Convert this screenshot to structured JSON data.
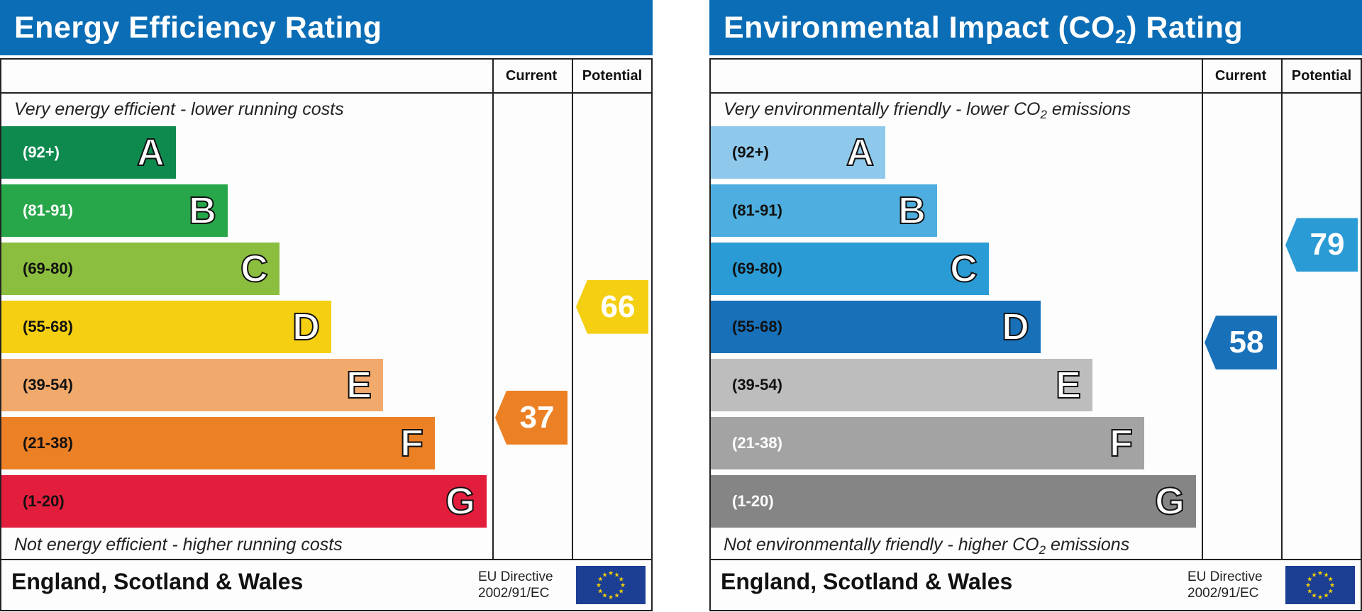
{
  "panels": [
    {
      "title_main": "Energy Efficiency Rating",
      "title_sub": "",
      "title_suffix": "",
      "col_current": "Current",
      "col_potential": "Potential",
      "caption_top": "Very energy efficient - lower running costs",
      "caption_top_sub": "",
      "caption_top_suffix": "",
      "caption_bottom": "Not energy efficient - higher running costs",
      "caption_bottom_sub": "",
      "caption_bottom_suffix": "",
      "footer": "England, Scotland & Wales",
      "eu_line1": "EU Directive",
      "eu_line2": "2002/91/EC"
    },
    {
      "title_main": "Environmental Impact (CO",
      "title_sub": "2",
      "title_suffix": ") Rating",
      "col_current": "Current",
      "col_potential": "Potential",
      "caption_top": "Very environmentally friendly - lower CO",
      "caption_top_sub": "2",
      "caption_top_suffix": " emissions",
      "caption_bottom": "Not environmentally friendly - higher CO",
      "caption_bottom_sub": "2",
      "caption_bottom_suffix": " emissions",
      "footer": "England, Scotland & Wales",
      "eu_line1": "EU Directive",
      "eu_line2": "2002/91/EC"
    }
  ],
  "chart_data": [
    {
      "type": "bar",
      "title": "Energy Efficiency Rating",
      "bands": [
        {
          "letter": "A",
          "range": "(92+)",
          "color": "#0f8a4f",
          "text_color": "#ffffff"
        },
        {
          "letter": "B",
          "range": "(81-91)",
          "color": "#27a64a",
          "text_color": "#ffffff"
        },
        {
          "letter": "C",
          "range": "(69-80)",
          "color": "#8bbd3e",
          "text_color": "#111111"
        },
        {
          "letter": "D",
          "range": "(55-68)",
          "color": "#f4cf12",
          "text_color": "#111111"
        },
        {
          "letter": "E",
          "range": "(39-54)",
          "color": "#f2aa6c",
          "text_color": "#111111"
        },
        {
          "letter": "F",
          "range": "(21-38)",
          "color": "#ec8025",
          "text_color": "#111111"
        },
        {
          "letter": "G",
          "range": "(1-20)",
          "color": "#e31d3c",
          "text_color": "#111111"
        }
      ],
      "current": {
        "value": 37,
        "band": "F",
        "color": "#ec8025"
      },
      "potential": {
        "value": 66,
        "band": "D",
        "color": "#f4cf12"
      }
    },
    {
      "type": "bar",
      "title": "Environmental Impact (CO2) Rating",
      "bands": [
        {
          "letter": "A",
          "range": "(92+)",
          "color": "#8ec9ec",
          "text_color": "#111111"
        },
        {
          "letter": "B",
          "range": "(81-91)",
          "color": "#4eaedf",
          "text_color": "#111111"
        },
        {
          "letter": "C",
          "range": "(69-80)",
          "color": "#2a9bd4",
          "text_color": "#111111"
        },
        {
          "letter": "D",
          "range": "(55-68)",
          "color": "#1870b8",
          "text_color": "#111111"
        },
        {
          "letter": "E",
          "range": "(39-54)",
          "color": "#bdbdbd",
          "text_color": "#111111"
        },
        {
          "letter": "F",
          "range": "(21-38)",
          "color": "#a3a3a3",
          "text_color": "#ffffff"
        },
        {
          "letter": "G",
          "range": "(1-20)",
          "color": "#858585",
          "text_color": "#ffffff"
        }
      ],
      "current": {
        "value": 58,
        "band": "D",
        "color": "#1870b8"
      },
      "potential": {
        "value": 79,
        "band": "C",
        "color": "#2a9bd4"
      }
    }
  ]
}
